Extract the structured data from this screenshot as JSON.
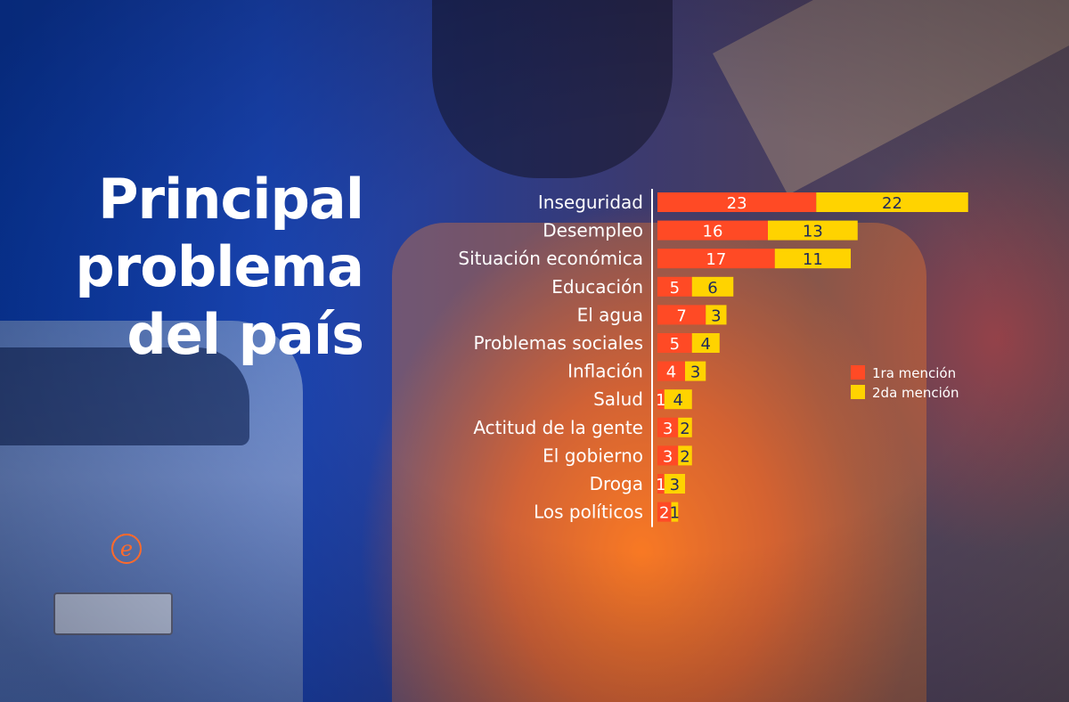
{
  "colors": {
    "first_mention": "#ff4a25",
    "second_mention": "#ffd300",
    "first_mention_label": "#ffffff",
    "second_mention_label": "#1f2a5c",
    "axis": "#ffffff",
    "title": "#ffffff",
    "logo": "#ff6a2b"
  },
  "icons": {
    "brand_logo": "e-circle-logo"
  },
  "chart_data": {
    "type": "bar",
    "orientation": "horizontal",
    "stacked": true,
    "title_lines": [
      "Principal",
      "problema",
      "del país"
    ],
    "title": "Principal problema del país",
    "categories": [
      "Inseguridad",
      "Desempleo",
      "Situación económica",
      "Educación",
      "El agua",
      "Problemas sociales",
      "Inflación",
      "Salud",
      "Actitud de la gente",
      "El gobierno",
      "Droga",
      "Los políticos"
    ],
    "series": [
      {
        "name": "1ra mención",
        "values": [
          23,
          16,
          17,
          5,
          7,
          5,
          4,
          1,
          3,
          3,
          1,
          2
        ]
      },
      {
        "name": "2da mención",
        "values": [
          22,
          13,
          11,
          6,
          3,
          4,
          3,
          4,
          2,
          2,
          3,
          1
        ]
      }
    ],
    "legend_position": "right",
    "grid": false
  }
}
